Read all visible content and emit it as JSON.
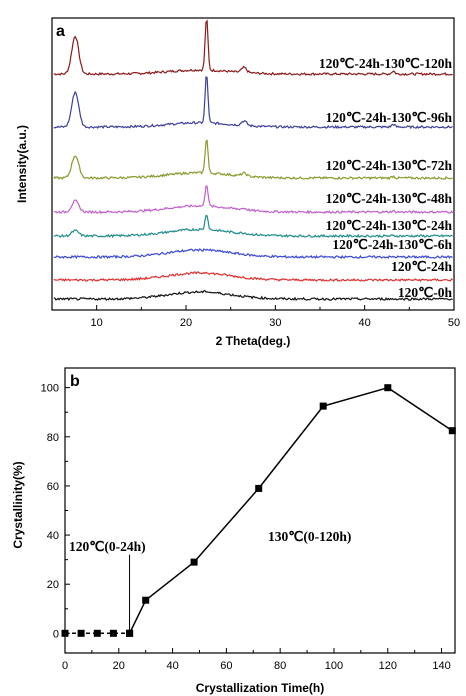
{
  "chart_data": [
    {
      "type": "line",
      "panel_label": "a",
      "xlabel": "2 Theta(deg.)",
      "ylabel": "Intensity(a.u.)",
      "xlim": [
        5,
        50
      ],
      "x_ticks": [
        10,
        20,
        30,
        40,
        50
      ],
      "y_ticks_shown": false,
      "grid": false,
      "series": [
        {
          "name": "120℃-24h-130℃-120h",
          "color": "#8b1a1a",
          "relative_intensity": 1.0
        },
        {
          "name": "120℃-24h-130℃-96h",
          "color": "#3b3f9a",
          "relative_intensity": 0.92
        },
        {
          "name": "120℃-24h-130℃-72h",
          "color": "#8a9a2e",
          "relative_intensity": 0.59
        },
        {
          "name": "120℃-24h-130℃-48h",
          "color": "#c060c8",
          "relative_intensity": 0.29
        },
        {
          "name": "120℃-24h-130℃-24h",
          "color": "#1f8c8c",
          "relative_intensity": 0.14
        },
        {
          "name": "120℃-24h-130℃-6h",
          "color": "#3a48d8",
          "relative_intensity": 0.0
        },
        {
          "name": "120℃-24h",
          "color": "#e03030",
          "relative_intensity": 0.0
        },
        {
          "name": "120℃-0h",
          "color": "#111111",
          "relative_intensity": 0.0
        }
      ]
    },
    {
      "type": "line",
      "panel_label": "b",
      "xlabel": "Crystallization Time(h)",
      "ylabel": "Crystallinity(%)",
      "xlim": [
        0,
        145
      ],
      "ylim": [
        -8,
        108
      ],
      "x_ticks": [
        0,
        20,
        40,
        60,
        80,
        100,
        120,
        140
      ],
      "y_ticks": [
        0,
        20,
        40,
        60,
        80,
        100
      ],
      "grid": false,
      "annotations": [
        "120℃(0-24h)",
        "130℃(0-120h)"
      ],
      "divider_x": 24,
      "series": [
        {
          "style": "dashed",
          "x": [
            0,
            6,
            12,
            18,
            24
          ],
          "y": [
            0,
            0,
            0,
            0,
            0
          ]
        },
        {
          "style": "solid",
          "x": [
            24,
            30,
            48,
            72,
            96,
            120,
            144
          ],
          "y": [
            0,
            13.5,
            29,
            59,
            92.5,
            100,
            82.5
          ]
        }
      ]
    }
  ]
}
